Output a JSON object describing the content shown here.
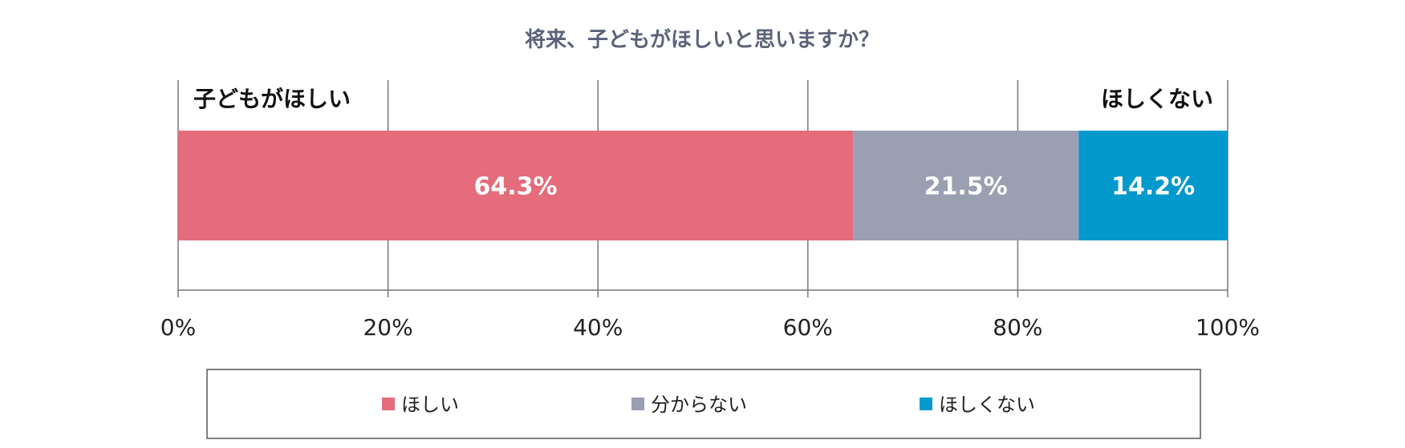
{
  "chart_data": {
    "type": "bar",
    "orientation": "horizontal",
    "stacked": true,
    "title": "将来、子どもがほしいと思いますか？",
    "left_label": "子どもがほしい",
    "right_label": "ほしくない",
    "xlim": [
      0,
      100
    ],
    "x_ticks": [
      "0%",
      "20%",
      "40%",
      "60%",
      "80%",
      "100%"
    ],
    "grid": true,
    "legend_placement": "bottom",
    "series": [
      {
        "name": "ほしい",
        "value": 64.3,
        "label": "64.3%",
        "color": "#e46c7b"
      },
      {
        "name": "分からない",
        "value": 21.5,
        "label": "21.5%",
        "color": "#9aa0b1"
      },
      {
        "name": "ほしくない",
        "value": 14.2,
        "label": "14.2%",
        "color": "#0399cc"
      }
    ]
  }
}
